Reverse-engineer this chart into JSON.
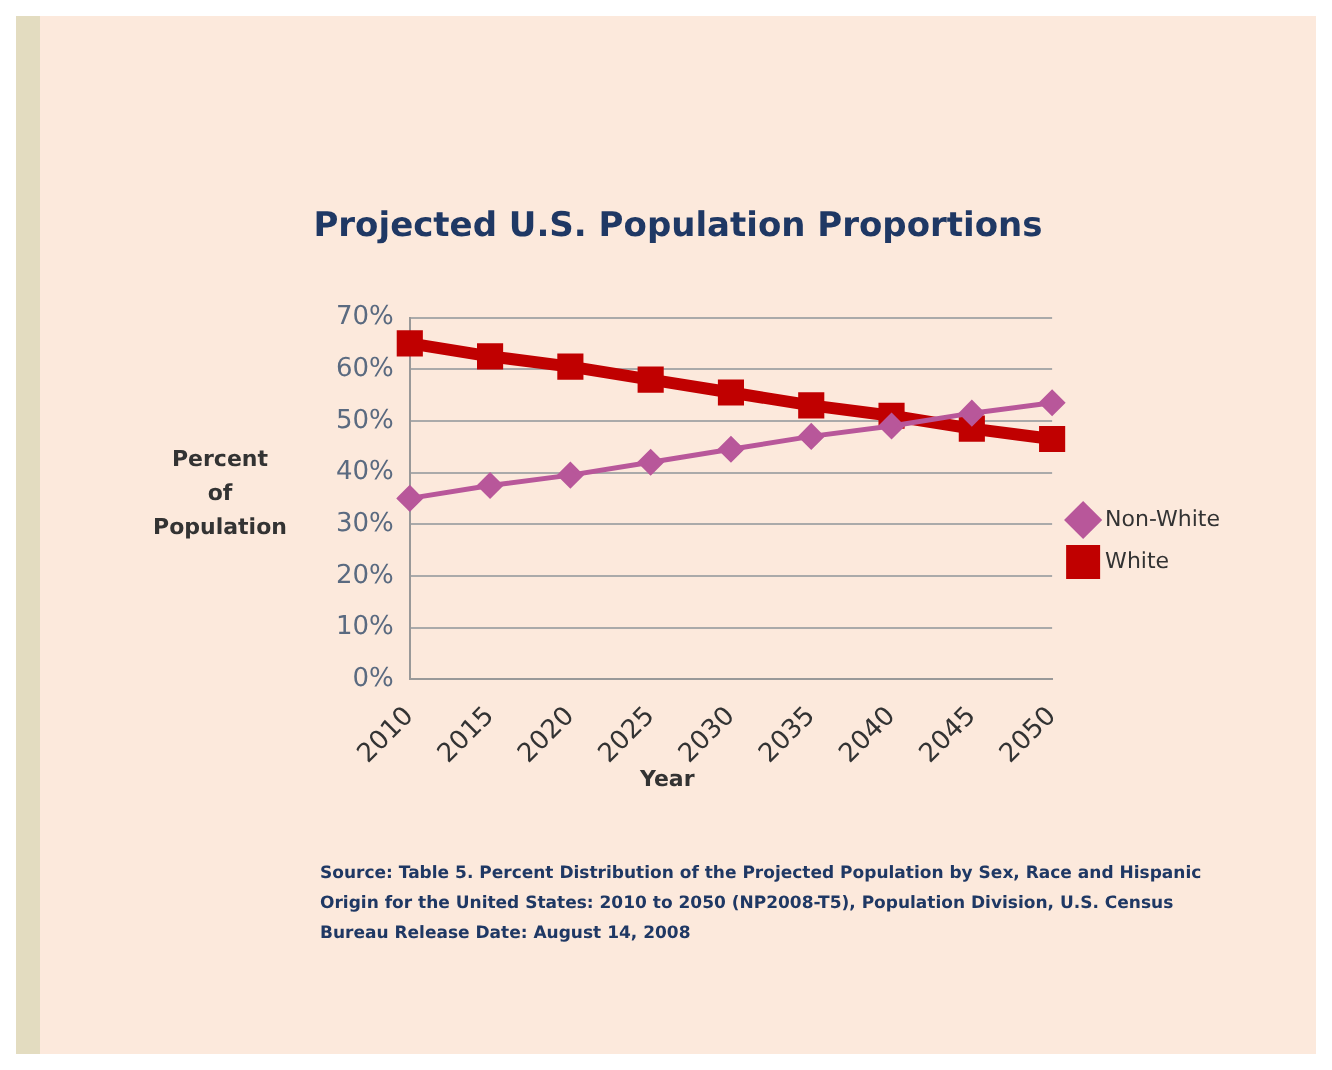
{
  "chart_data": {
    "type": "line",
    "title": "Projected U.S. Population Proportions",
    "xlabel": "Year",
    "ylabel": "Percent\nof\nPopulation",
    "categories": [
      "2010",
      "2015",
      "2020",
      "2025",
      "2030",
      "2035",
      "2040",
      "2045",
      "2050"
    ],
    "series": [
      {
        "name": "Non-White",
        "color": "#b8579a",
        "marker": "diamond",
        "values": [
          35,
          37.5,
          39.5,
          42,
          44.5,
          47,
          49,
          51.5,
          53.5
        ]
      },
      {
        "name": "White",
        "color": "#c00000",
        "marker": "square",
        "values": [
          65,
          62.5,
          60.5,
          58,
          55.5,
          53,
          51,
          48.5,
          46.5
        ]
      }
    ],
    "ylim": [
      0,
      70
    ],
    "yticks": [
      {
        "value": 0,
        "label": "0%"
      },
      {
        "value": 10,
        "label": "10%"
      },
      {
        "value": 20,
        "label": "20%"
      },
      {
        "value": 30,
        "label": "30%"
      },
      {
        "value": 40,
        "label": "40%"
      },
      {
        "value": 50,
        "label": "50%"
      },
      {
        "value": 60,
        "label": "60%"
      },
      {
        "value": 70,
        "label": "70%"
      }
    ],
    "grid": "y",
    "legend": "right",
    "annotations": [
      "Source: Table 5.  Percent Distribution of the Projected Population by Sex, Race and Hispanic Origin for the United States:  2010 to 2050 (NP2008-T5), Population Division, U.S. Census Bureau Release Date: August 14, 2008"
    ]
  }
}
